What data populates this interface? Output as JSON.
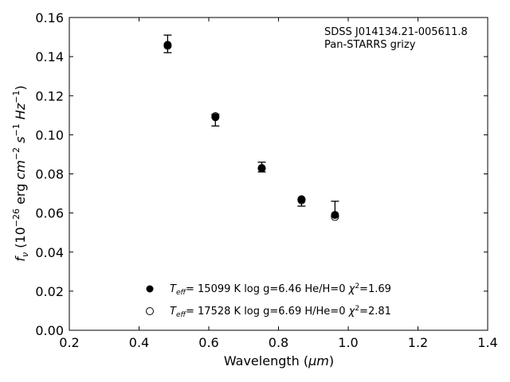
{
  "chart_data": {
    "type": "scatter",
    "annotation": [
      "SDSS J014134.21-005611.8",
      "Pan-STARRS grizy"
    ],
    "xlabel": "Wavelength (μm)",
    "ylabel": "fν (10⁻²⁶ erg cm⁻² s⁻¹ Hz⁻¹)",
    "xlim": [
      0.2,
      1.4
    ],
    "ylim": [
      0.0,
      0.16
    ],
    "xticks": [
      "0.2",
      "0.4",
      "0.6",
      "0.8",
      "1.0",
      "1.2",
      "1.4"
    ],
    "yticks": [
      "0.00",
      "0.02",
      "0.04",
      "0.06",
      "0.08",
      "0.10",
      "0.12",
      "0.14",
      "0.16"
    ],
    "observed": {
      "x": [
        0.482,
        0.619,
        0.752,
        0.866,
        0.962
      ],
      "y": [
        0.1465,
        0.109,
        0.0835,
        0.0655,
        0.06
      ],
      "yerr_low": [
        0.0045,
        0.0045,
        0.0025,
        0.002,
        0.0015
      ],
      "yerr_high": [
        0.0045,
        0.0015,
        0.0025,
        0.0015,
        0.006
      ]
    },
    "series": [
      {
        "name": "Teff= 15099 K  log g=6.46  He/H=0  χ²=1.69",
        "marker": "filled-circle",
        "x": [
          0.482,
          0.619,
          0.752,
          0.866,
          0.962
        ],
        "y": [
          0.146,
          0.109,
          0.083,
          0.067,
          0.059
        ]
      },
      {
        "name": "Teff= 17528 K  log g=6.69  H/He=0  χ²=2.81",
        "marker": "open-circle",
        "x": [
          0.482,
          0.619,
          0.752,
          0.866,
          0.962
        ],
        "y": [
          0.1455,
          0.1095,
          0.0828,
          0.0665,
          0.058
        ]
      }
    ],
    "legend_labels": [
      {
        "teff": "15099 K",
        "logg": "log g=6.46",
        "comp": "He/H=0",
        "chi2": "=1.69"
      },
      {
        "teff": "17528 K",
        "logg": "log g=6.69",
        "comp": "H/He=0",
        "chi2": "=2.81"
      }
    ],
    "legend_placement": "lower-center",
    "grid": false
  }
}
